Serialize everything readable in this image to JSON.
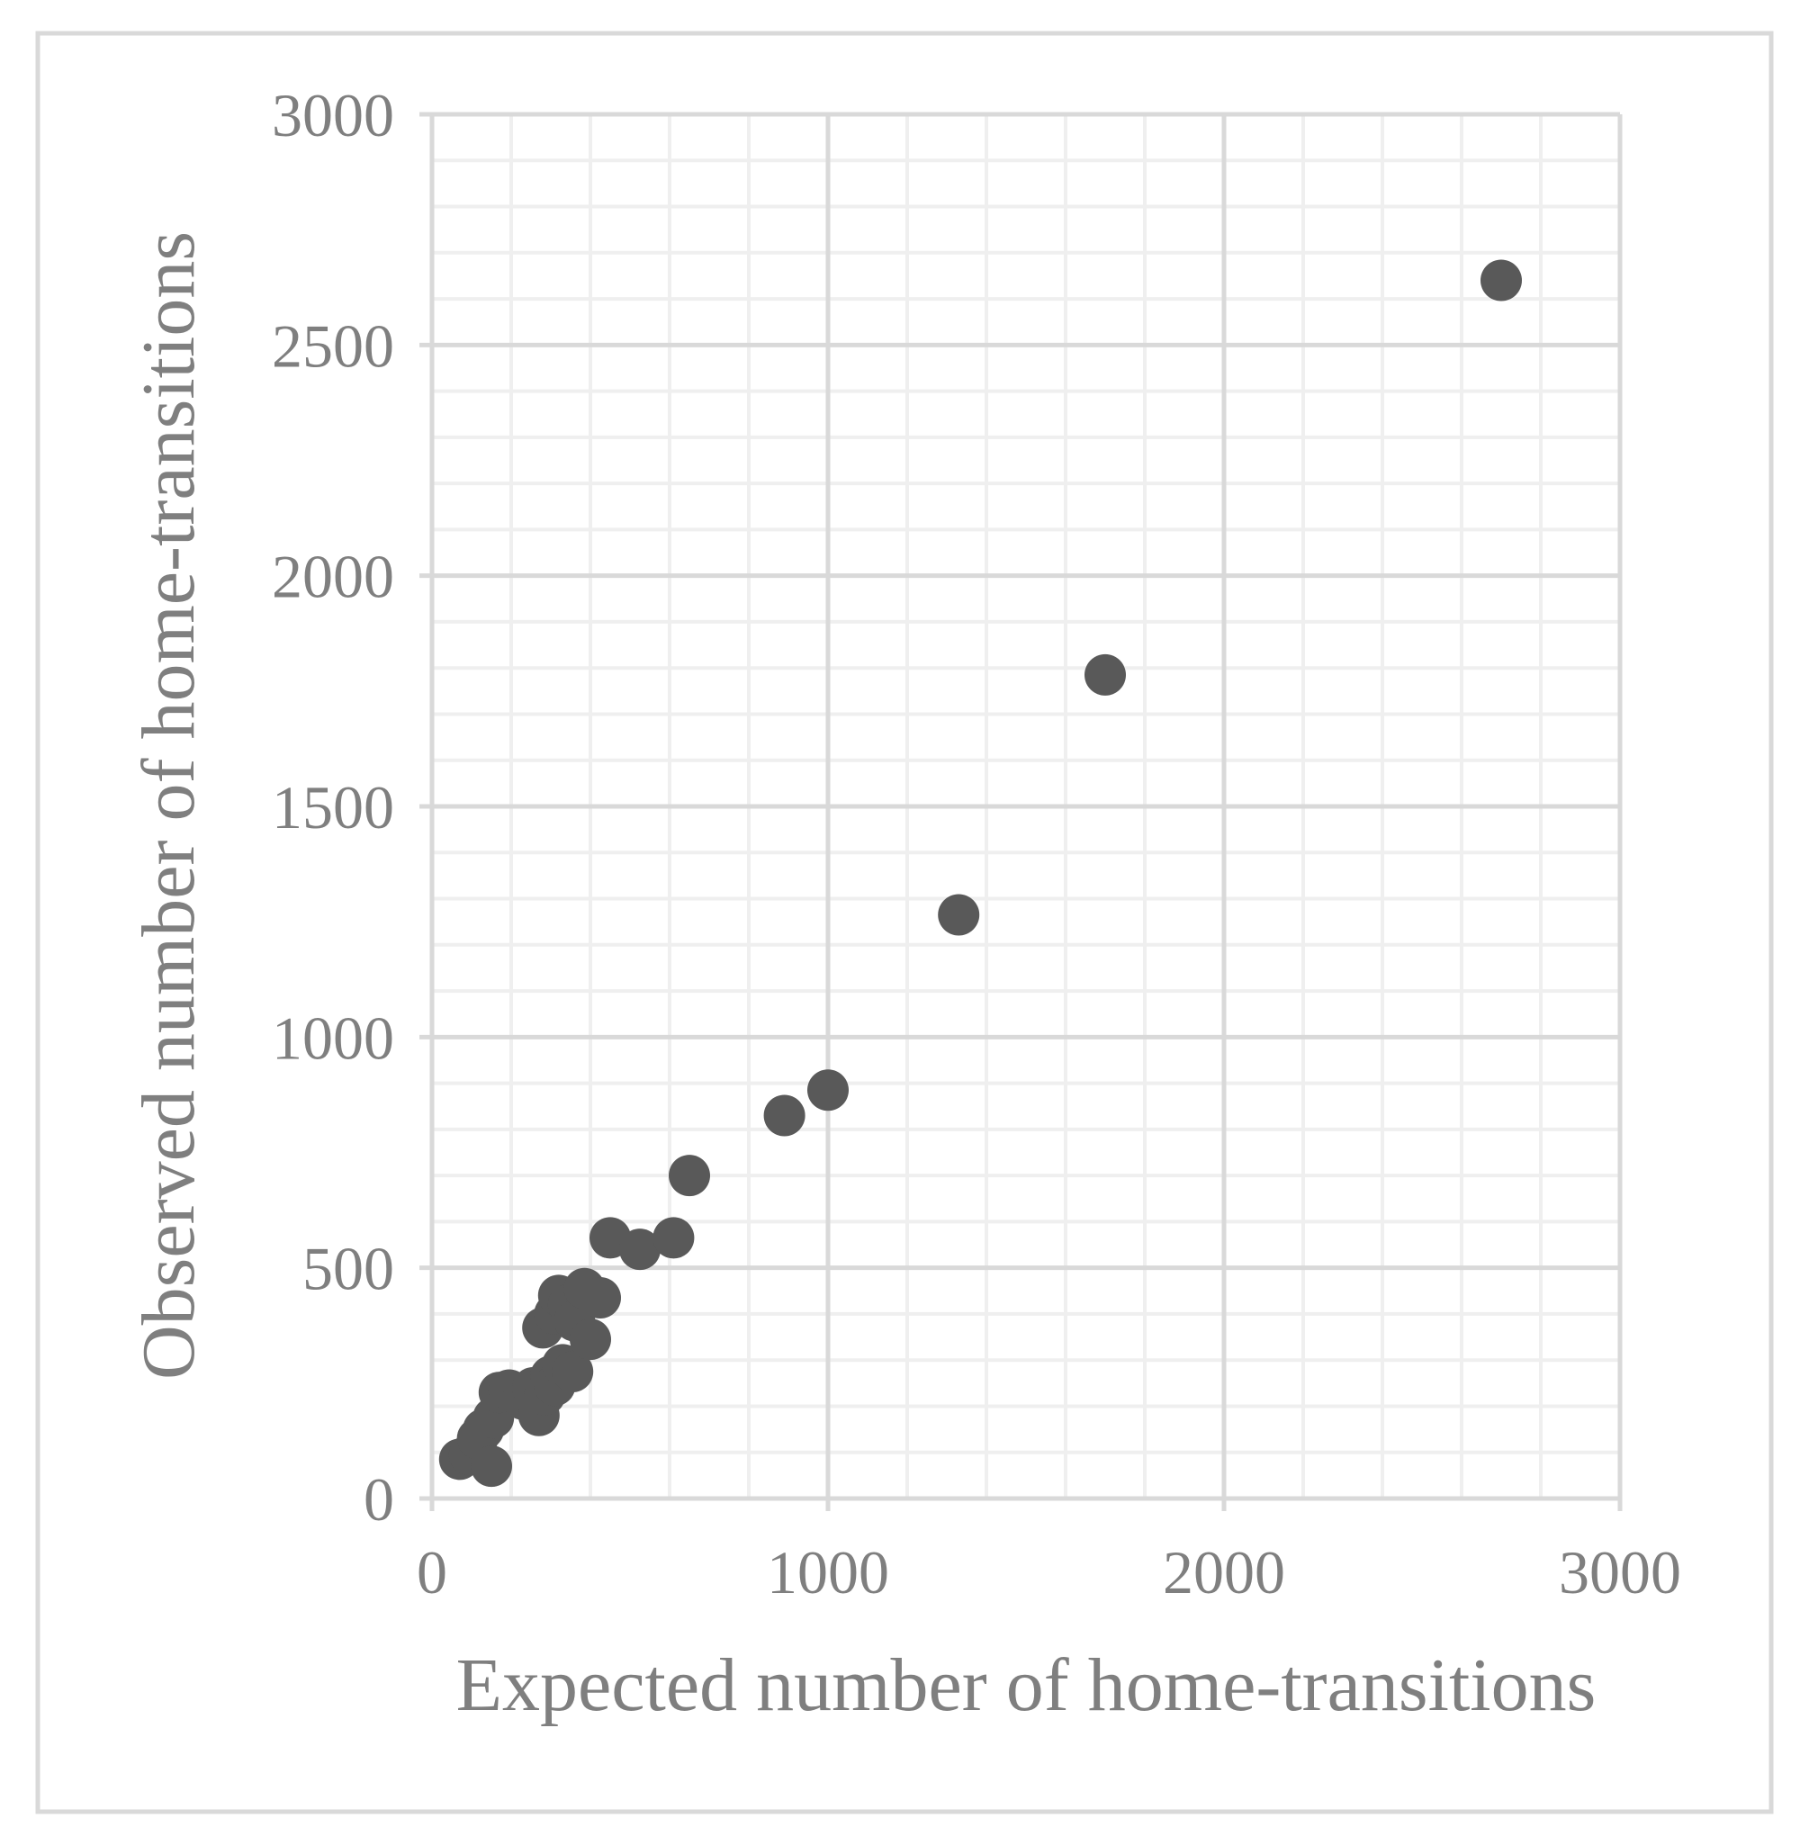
{
  "chart_data": {
    "type": "scatter",
    "title": "",
    "xlabel": "Expected number of home-transitions",
    "ylabel": "Observed number of home-transitions",
    "xlim": [
      0,
      3000
    ],
    "ylim": [
      0,
      3000
    ],
    "x_major_ticks": [
      0,
      1000,
      2000,
      3000
    ],
    "y_major_ticks": [
      0,
      500,
      1000,
      1500,
      2000,
      2500,
      3000
    ],
    "x_tick_labels": [
      "0",
      "1000",
      "2000",
      "3000"
    ],
    "y_tick_labels": [
      "0",
      "500",
      "1000",
      "1500",
      "2000",
      "2500",
      "3000"
    ],
    "x_minor_step": 200,
    "y_minor_step": 100,
    "grid": true,
    "legend": "none",
    "marker_color": "#595959",
    "grid_color": "#d9d9d9",
    "minor_grid_color": "#efefef",
    "text_color": "#7f7f7f",
    "points": [
      {
        "x": 70,
        "y": 85
      },
      {
        "x": 95,
        "y": 95
      },
      {
        "x": 115,
        "y": 130
      },
      {
        "x": 130,
        "y": 150
      },
      {
        "x": 150,
        "y": 70
      },
      {
        "x": 155,
        "y": 175
      },
      {
        "x": 170,
        "y": 230
      },
      {
        "x": 195,
        "y": 235
      },
      {
        "x": 230,
        "y": 215
      },
      {
        "x": 255,
        "y": 240
      },
      {
        "x": 270,
        "y": 180
      },
      {
        "x": 285,
        "y": 225
      },
      {
        "x": 300,
        "y": 265
      },
      {
        "x": 310,
        "y": 245
      },
      {
        "x": 330,
        "y": 290
      },
      {
        "x": 355,
        "y": 275
      },
      {
        "x": 280,
        "y": 370
      },
      {
        "x": 310,
        "y": 400
      },
      {
        "x": 320,
        "y": 440
      },
      {
        "x": 345,
        "y": 420
      },
      {
        "x": 360,
        "y": 385
      },
      {
        "x": 385,
        "y": 455
      },
      {
        "x": 400,
        "y": 345
      },
      {
        "x": 425,
        "y": 435
      },
      {
        "x": 450,
        "y": 565
      },
      {
        "x": 525,
        "y": 540
      },
      {
        "x": 610,
        "y": 565
      },
      {
        "x": 650,
        "y": 700
      },
      {
        "x": 890,
        "y": 830
      },
      {
        "x": 1000,
        "y": 885
      },
      {
        "x": 1330,
        "y": 1265
      },
      {
        "x": 1700,
        "y": 1785
      },
      {
        "x": 2700,
        "y": 2640
      }
    ]
  }
}
